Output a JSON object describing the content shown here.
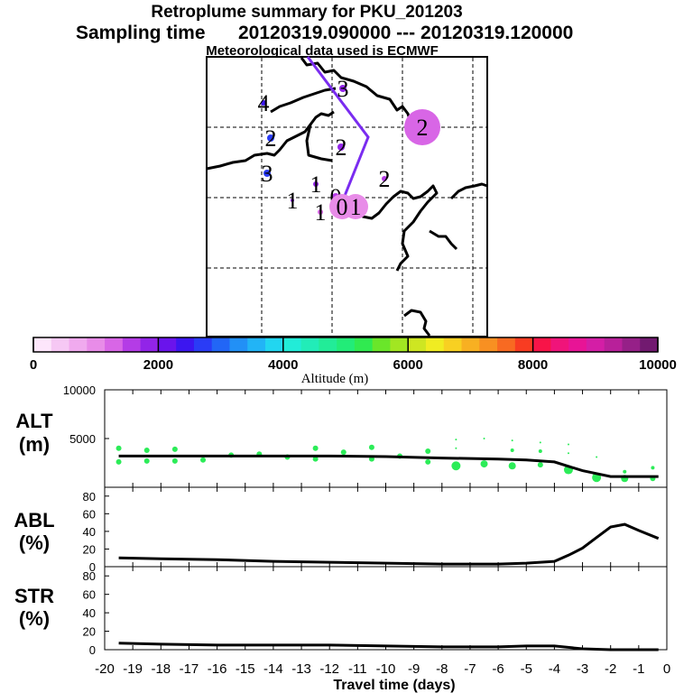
{
  "header": {
    "title": "Retroplume summary for PKU_201203",
    "sampling_prefix": "Sampling time",
    "sampling_time": "20120319.090000 --- 20120319.120000",
    "met_note": "Meteorological data used is ECMWF"
  },
  "colorbar": {
    "label": "Altitude (m)",
    "ticks": [
      "0",
      "2000",
      "4000",
      "6000",
      "8000",
      "10000"
    ],
    "tick_values": [
      0,
      2000,
      4000,
      6000,
      8000,
      10000
    ],
    "colors": [
      "#fde6fb",
      "#f6c8f4",
      "#f0aaee",
      "#e88ce8",
      "#d866e6",
      "#b43ce6",
      "#9224e8",
      "#6a14ec",
      "#3c16f0",
      "#2a3cf6",
      "#2266f6",
      "#2290f6",
      "#22b4f6",
      "#22d6f0",
      "#22ecd8",
      "#22ecb8",
      "#22ec98",
      "#22ec78",
      "#30ea50",
      "#6ae62a",
      "#a2e622",
      "#cee622",
      "#f0ec22",
      "#f8d022",
      "#f8b022",
      "#f89022",
      "#f86a22",
      "#f83c22",
      "#f81448",
      "#f0147a",
      "#e81496",
      "#d41ea6",
      "#b8209a",
      "#962088",
      "#721a70"
    ]
  },
  "map": {
    "trajectory_color": "#7a2cf0",
    "labels": [
      {
        "text": "4",
        "color": "#3c16f0",
        "size": 3
      },
      {
        "text": "3",
        "color": "#9224e8",
        "size": 4
      },
      {
        "text": "3",
        "color": "#2a3cf6",
        "size": 4
      },
      {
        "text": "2",
        "color": "#2a3cf6",
        "size": 4
      },
      {
        "text": "2",
        "color": "#9224e8",
        "size": 4
      },
      {
        "text": "2",
        "color": "#b43ce6",
        "size": 3
      },
      {
        "text": "2",
        "color": "#d866e6",
        "size": 20
      },
      {
        "text": "1",
        "color": "#9224e8",
        "size": 3
      },
      {
        "text": "1",
        "color": "#9224e8",
        "size": 2
      },
      {
        "text": "1",
        "color": "#d866e6",
        "size": 3
      },
      {
        "text": "0",
        "color": "#b43ce6",
        "size": 4
      },
      {
        "text": "1",
        "color": "#e88ce8",
        "size": 14
      },
      {
        "text": "0",
        "color": "#e88ce8",
        "size": 14
      }
    ]
  },
  "chart_data": [
    {
      "type": "scatter",
      "name": "ALT",
      "ylabel_line1": "ALT",
      "ylabel_line2": "(m)",
      "ylim": [
        0,
        10000
      ],
      "yticks": [
        {
          "value": 10000,
          "label": "10000"
        },
        {
          "value": 5000,
          "label": "5000"
        }
      ],
      "xlim": [
        -20,
        0
      ],
      "line": {
        "x": [
          -19.5,
          -18,
          -16,
          -14,
          -12,
          -10,
          -8,
          -6,
          -5,
          -4,
          -3,
          -2,
          -1,
          -0.3
        ],
        "y": [
          3200,
          3200,
          3200,
          3200,
          3200,
          3150,
          3000,
          2900,
          2800,
          2600,
          1700,
          1100,
          1100,
          1100
        ]
      },
      "points": [
        {
          "x": -19.5,
          "y": 4000,
          "s": 3
        },
        {
          "x": -19.5,
          "y": 2600,
          "s": 3
        },
        {
          "x": -18.5,
          "y": 3800,
          "s": 3
        },
        {
          "x": -18.5,
          "y": 2700,
          "s": 3
        },
        {
          "x": -17.5,
          "y": 3900,
          "s": 3
        },
        {
          "x": -17.5,
          "y": 2700,
          "s": 3
        },
        {
          "x": -16.5,
          "y": 2800,
          "s": 3
        },
        {
          "x": -15.5,
          "y": 3300,
          "s": 3
        },
        {
          "x": -14.5,
          "y": 3400,
          "s": 3
        },
        {
          "x": -13.5,
          "y": 3100,
          "s": 3
        },
        {
          "x": -12.5,
          "y": 4000,
          "s": 3
        },
        {
          "x": -12.5,
          "y": 2900,
          "s": 3
        },
        {
          "x": -11.5,
          "y": 3600,
          "s": 3
        },
        {
          "x": -10.5,
          "y": 4100,
          "s": 3
        },
        {
          "x": -10.5,
          "y": 2900,
          "s": 3
        },
        {
          "x": -9.5,
          "y": 3200,
          "s": 3
        },
        {
          "x": -8.5,
          "y": 3700,
          "s": 3
        },
        {
          "x": -8.5,
          "y": 2600,
          "s": 3
        },
        {
          "x": -7.5,
          "y": 2200,
          "s": 5
        },
        {
          "x": -7.5,
          "y": 4000,
          "s": 1
        },
        {
          "x": -7.5,
          "y": 4900,
          "s": 1
        },
        {
          "x": -6.5,
          "y": 2400,
          "s": 4
        },
        {
          "x": -6.5,
          "y": 5000,
          "s": 1
        },
        {
          "x": -5.5,
          "y": 2200,
          "s": 4
        },
        {
          "x": -5.5,
          "y": 3800,
          "s": 2
        },
        {
          "x": -5.5,
          "y": 4800,
          "s": 1
        },
        {
          "x": -4.5,
          "y": 2300,
          "s": 3
        },
        {
          "x": -4.5,
          "y": 3700,
          "s": 2
        },
        {
          "x": -4.5,
          "y": 4600,
          "s": 1
        },
        {
          "x": -3.5,
          "y": 1800,
          "s": 5
        },
        {
          "x": -3.5,
          "y": 3500,
          "s": 1
        },
        {
          "x": -3.5,
          "y": 4400,
          "s": 1
        },
        {
          "x": -2.5,
          "y": 1000,
          "s": 5
        },
        {
          "x": -2.5,
          "y": 3100,
          "s": 1
        },
        {
          "x": -1.5,
          "y": 900,
          "s": 4
        },
        {
          "x": -1.5,
          "y": 1600,
          "s": 2
        },
        {
          "x": -0.5,
          "y": 900,
          "s": 3
        },
        {
          "x": -0.5,
          "y": 2000,
          "s": 2
        }
      ]
    },
    {
      "type": "line",
      "name": "ABL",
      "ylabel_line1": "ABL",
      "ylabel_line2": "(%)",
      "ylim": [
        0,
        90
      ],
      "yticks": [
        {
          "value": 80,
          "label": "80"
        },
        {
          "value": 60,
          "label": "60"
        },
        {
          "value": 40,
          "label": "40"
        },
        {
          "value": 20,
          "label": "20"
        },
        {
          "value": 0,
          "label": "0"
        }
      ],
      "xlim": [
        -20,
        0
      ],
      "x": [
        -19.5,
        -18,
        -16,
        -14,
        -12,
        -10,
        -8,
        -6,
        -5,
        -4,
        -3.5,
        -3,
        -2.5,
        -2,
        -1.5,
        -1,
        -0.3
      ],
      "y": [
        10,
        9,
        8,
        6,
        5,
        4,
        3,
        3,
        4,
        6,
        13,
        21,
        33,
        45,
        48,
        41,
        32
      ]
    },
    {
      "type": "line",
      "name": "STR",
      "ylabel_line1": "STR",
      "ylabel_line2": "(%)",
      "ylim": [
        0,
        90
      ],
      "yticks": [
        {
          "value": 80,
          "label": "80"
        },
        {
          "value": 60,
          "label": "60"
        },
        {
          "value": 40,
          "label": "40"
        },
        {
          "value": 20,
          "label": "20"
        },
        {
          "value": 0,
          "label": "0"
        }
      ],
      "xlim": [
        -20,
        0
      ],
      "x": [
        -19.5,
        -18,
        -16,
        -14,
        -12,
        -10,
        -8,
        -6,
        -5,
        -4,
        -3,
        -2,
        -1,
        -0.3
      ],
      "y": [
        7,
        6,
        5,
        5,
        5,
        4,
        3,
        3,
        4,
        4,
        1,
        0,
        0,
        0
      ],
      "xlabel": "Travel time (days)",
      "xticks": [
        "-20",
        "-19",
        "-18",
        "-17",
        "-16",
        "-15",
        "-14",
        "-13",
        "-12",
        "-11",
        "-10",
        "-9",
        "-8",
        "-7",
        "-6",
        "-5",
        "-4",
        "-3",
        "-2",
        "-1",
        "0"
      ]
    }
  ]
}
